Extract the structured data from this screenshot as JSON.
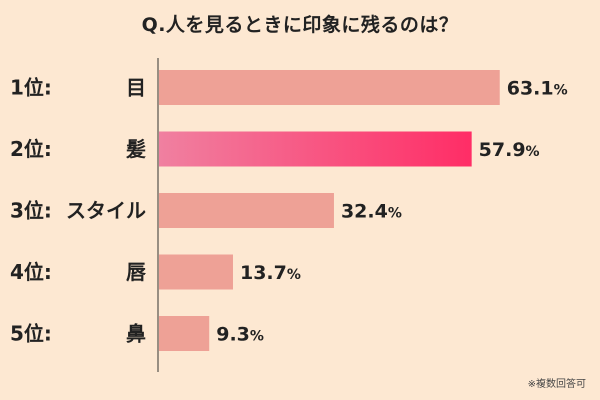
{
  "chart_data": {
    "type": "bar",
    "orientation": "horizontal",
    "title": "Q.人を見るときに印象に残るのは？",
    "note": "※複数回答可",
    "rank_labels": [
      "1位:",
      "2位:",
      "3位:",
      "4位:",
      "5位:"
    ],
    "categories": [
      "目",
      "髪",
      "スタイル",
      "唇",
      "鼻"
    ],
    "values": [
      63.1,
      57.9,
      32.4,
      13.7,
      9.3
    ],
    "value_labels": [
      "63.1",
      "57.9",
      "32.4",
      "13.7",
      "9.3"
    ],
    "unit": "%",
    "xlim": [
      0,
      100
    ],
    "highlight_index": 1,
    "grid": false,
    "legend": "none",
    "colors": {
      "bar": "#eea196",
      "highlight_start": "#f080a0",
      "highlight_end": "#ff2d66",
      "background": "#fde8d2",
      "axis": "#333333"
    }
  }
}
